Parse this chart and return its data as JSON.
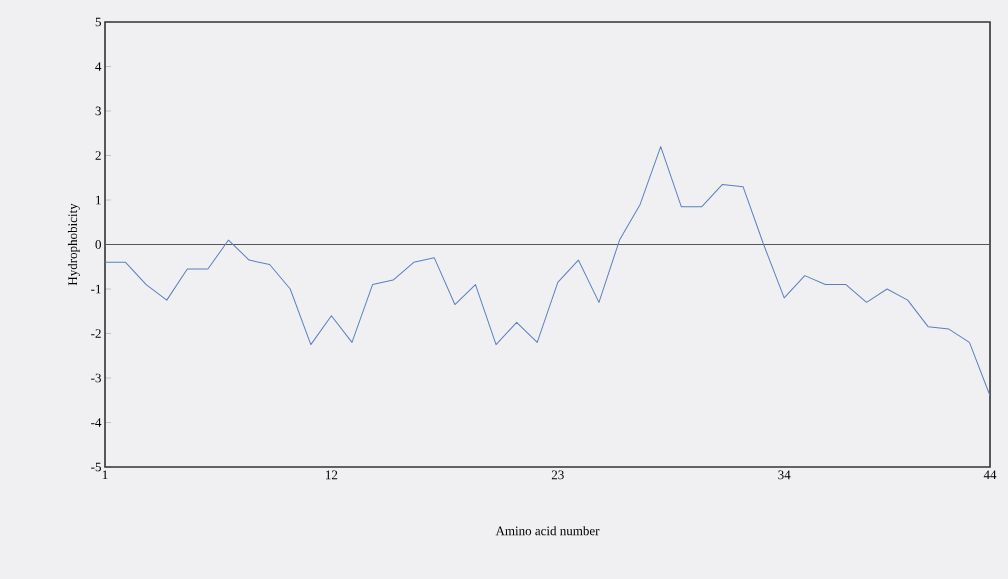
{
  "chart_data": {
    "type": "line",
    "xlabel": "Amino acid number",
    "ylabel": "Hydrophobicity",
    "x": [
      1,
      2,
      3,
      4,
      5,
      6,
      7,
      8,
      9,
      10,
      11,
      12,
      13,
      14,
      15,
      16,
      17,
      18,
      19,
      20,
      21,
      22,
      23,
      24,
      25,
      26,
      27,
      28,
      29,
      30,
      31,
      32,
      33,
      34,
      35,
      36,
      37,
      38,
      39,
      40,
      41,
      42,
      43,
      44
    ],
    "series": [
      {
        "color": "#5a7fc0",
        "values": [
          -0.4,
          -0.4,
          -0.9,
          -1.25,
          -0.55,
          -0.55,
          0.1,
          -0.35,
          -0.45,
          -1.0,
          -2.25,
          -1.6,
          -2.2,
          -0.9,
          -0.8,
          -0.4,
          -0.3,
          -1.35,
          -0.9,
          -2.25,
          -1.75,
          -2.2,
          -0.85,
          -0.35,
          -1.3,
          0.1,
          0.9,
          2.2,
          0.85,
          0.85,
          1.35,
          1.3,
          0.0,
          -1.2,
          -0.7,
          -0.9,
          -0.9,
          -1.3,
          -1.0,
          -1.25,
          -1.85,
          -1.9,
          -2.2,
          -3.4
        ]
      }
    ],
    "xlim": [
      1,
      44
    ],
    "ylim": [
      -5,
      5
    ],
    "xticks": [
      1,
      12,
      23,
      34,
      44
    ],
    "yticks": [
      -5,
      -4,
      -3,
      -2,
      -1,
      0,
      1,
      2,
      3,
      4,
      5
    ],
    "ref_lines": [
      {
        "axis": "y",
        "value": 0,
        "color": "#555555"
      }
    ],
    "marker": "none",
    "line_style": "solid"
  }
}
